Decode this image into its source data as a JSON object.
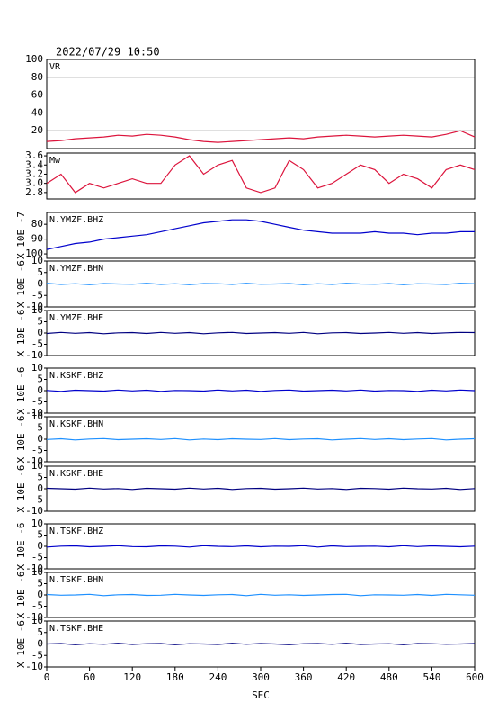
{
  "chart_data": [
    {
      "type": "line",
      "title": "2022/07/29 10:50",
      "label": "VR",
      "color": "#dc143c",
      "grid": true,
      "x": [
        0,
        20,
        40,
        60,
        80,
        100,
        120,
        140,
        160,
        180,
        200,
        220,
        240,
        260,
        280,
        300,
        320,
        340,
        360,
        380,
        400,
        420,
        440,
        460,
        480,
        500,
        520,
        540,
        560,
        580,
        600
      ],
      "values": [
        8,
        9,
        11,
        12,
        13,
        15,
        14,
        16,
        15,
        13,
        10,
        8,
        7,
        8,
        9,
        10,
        11,
        12,
        11,
        13,
        14,
        15,
        14,
        13,
        14,
        15,
        14,
        13,
        16,
        20,
        13
      ],
      "xlim": [
        0,
        600
      ],
      "ylim": [
        0,
        100
      ],
      "yticks": [
        20,
        40,
        60,
        80,
        100
      ]
    },
    {
      "type": "line",
      "label": "Mw",
      "color": "#dc143c",
      "x": [
        0,
        20,
        40,
        60,
        80,
        100,
        120,
        140,
        160,
        180,
        200,
        220,
        240,
        260,
        280,
        300,
        320,
        340,
        360,
        380,
        400,
        420,
        440,
        460,
        480,
        500,
        520,
        540,
        560,
        580,
        600
      ],
      "values": [
        3.0,
        3.2,
        2.8,
        3.0,
        2.9,
        3.0,
        3.1,
        3.0,
        3.0,
        3.4,
        3.6,
        3.2,
        3.4,
        3.5,
        2.9,
        2.8,
        2.9,
        3.5,
        3.3,
        2.9,
        3.0,
        3.2,
        3.4,
        3.3,
        3.0,
        3.2,
        3.1,
        2.9,
        3.3,
        3.4,
        3.3
      ],
      "xlim": [
        0,
        600
      ],
      "ylim": [
        2.66,
        3.66
      ],
      "yticks": [
        2.8,
        {
          "value": 3,
          "label": "3.0"
        },
        3.2,
        3.4,
        3.6
      ]
    },
    {
      "type": "line",
      "label": "N.YMZF.BHZ",
      "y_label": "X 10E -7",
      "color": "#0000cc",
      "x": [
        0,
        20,
        40,
        60,
        80,
        100,
        120,
        140,
        160,
        180,
        200,
        220,
        240,
        260,
        280,
        300,
        320,
        340,
        360,
        380,
        400,
        420,
        440,
        460,
        480,
        500,
        520,
        540,
        560,
        580,
        600
      ],
      "values": [
        97,
        95,
        93,
        92,
        90,
        89,
        88,
        87,
        85,
        83,
        81,
        79,
        78,
        77,
        77,
        78,
        80,
        82,
        84,
        85,
        86,
        86,
        86,
        85,
        86,
        86,
        87,
        86,
        86,
        85,
        85
      ],
      "xlim": [
        0,
        600
      ],
      "ylim": [
        103,
        72
      ],
      "yticks": [
        80,
        90,
        100
      ]
    },
    {
      "type": "line",
      "label": "N.YMZF.BHN",
      "y_label": "X 10E -6",
      "color": "#1e90ff",
      "x": [
        0,
        20,
        40,
        60,
        80,
        100,
        120,
        140,
        160,
        180,
        200,
        220,
        240,
        260,
        280,
        300,
        320,
        340,
        360,
        380,
        400,
        420,
        440,
        460,
        480,
        500,
        520,
        540,
        560,
        580,
        600
      ],
      "values": [
        0.3,
        -0.2,
        0.1,
        -0.3,
        0.2,
        0,
        -0.1,
        0.3,
        -0.2,
        0.1,
        -0.3,
        0.2,
        0.1,
        -0.2,
        0.3,
        -0.1,
        0,
        0.2,
        -0.3,
        0.1,
        -0.2,
        0.3,
        0,
        -0.1,
        0.2,
        -0.3,
        0.1,
        0,
        -0.2,
        0.3,
        0.1
      ],
      "xlim": [
        0,
        600
      ],
      "ylim": [
        -10,
        10
      ],
      "yticks": [
        -10,
        -5,
        0,
        5,
        10
      ]
    },
    {
      "type": "line",
      "label": "N.YMZF.BHE",
      "y_label": "X 10E -6",
      "color": "#000080",
      "x": [
        0,
        20,
        40,
        60,
        80,
        100,
        120,
        140,
        160,
        180,
        200,
        220,
        240,
        260,
        280,
        300,
        320,
        340,
        360,
        380,
        400,
        420,
        440,
        460,
        480,
        500,
        520,
        540,
        560,
        580,
        600
      ],
      "values": [
        -0.2,
        0.3,
        -0.1,
        0.2,
        -0.3,
        0.1,
        0.2,
        -0.2,
        0.3,
        -0.1,
        0.2,
        -0.3,
        0.1,
        0.3,
        -0.2,
        0,
        0.2,
        -0.1,
        0.3,
        -0.3,
        0.1,
        0.2,
        -0.2,
        0,
        0.3,
        -0.1,
        0.2,
        -0.2,
        0.1,
        0.3,
        0.2
      ],
      "xlim": [
        0,
        600
      ],
      "ylim": [
        -10,
        10
      ],
      "yticks": [
        -10,
        -5,
        0,
        5,
        10
      ]
    },
    {
      "type": "line",
      "label": "N.KSKF.BHZ",
      "y_label": "X 10E -6",
      "color": "#0000cc",
      "x": [
        0,
        20,
        40,
        60,
        80,
        100,
        120,
        140,
        160,
        180,
        200,
        220,
        240,
        260,
        280,
        300,
        320,
        340,
        360,
        380,
        400,
        420,
        440,
        460,
        480,
        500,
        520,
        540,
        560,
        580,
        600
      ],
      "values": [
        0.1,
        -0.3,
        0.2,
        0,
        -0.2,
        0.3,
        -0.1,
        0.2,
        -0.3,
        0.1,
        0,
        -0.2,
        0.3,
        -0.1,
        0.2,
        -0.3,
        0.1,
        0.3,
        -0.2,
        0,
        0.2,
        -0.1,
        0.3,
        -0.2,
        0.1,
        0,
        -0.3,
        0.2,
        -0.1,
        0.3,
        0
      ],
      "xlim": [
        0,
        600
      ],
      "ylim": [
        -10,
        10
      ],
      "yticks": [
        -10,
        -5,
        0,
        5,
        10
      ]
    },
    {
      "type": "line",
      "label": "N.KSKF.BHN",
      "y_label": "X 10E -6",
      "color": "#1e90ff",
      "x": [
        0,
        20,
        40,
        60,
        80,
        100,
        120,
        140,
        160,
        180,
        200,
        220,
        240,
        260,
        280,
        300,
        320,
        340,
        360,
        380,
        400,
        420,
        440,
        460,
        480,
        500,
        520,
        540,
        560,
        580,
        600
      ],
      "values": [
        -0.1,
        0.2,
        -0.3,
        0.1,
        0.3,
        -0.2,
        0,
        0.2,
        -0.1,
        0.3,
        -0.3,
        0.1,
        -0.2,
        0.2,
        0,
        -0.1,
        0.3,
        -0.2,
        0.1,
        0.2,
        -0.3,
        0,
        0.3,
        -0.1,
        0.2,
        -0.2,
        0.1,
        0.3,
        -0.3,
        0,
        0.2
      ],
      "xlim": [
        0,
        600
      ],
      "ylim": [
        -10,
        10
      ],
      "yticks": [
        -10,
        -5,
        0,
        5,
        10
      ]
    },
    {
      "type": "line",
      "label": "N.KSKF.BHE",
      "y_label": "X 10E -6",
      "color": "#000080",
      "x": [
        0,
        20,
        40,
        60,
        80,
        100,
        120,
        140,
        160,
        180,
        200,
        220,
        240,
        260,
        280,
        300,
        320,
        340,
        360,
        380,
        400,
        420,
        440,
        460,
        480,
        500,
        520,
        540,
        560,
        580,
        600
      ],
      "values": [
        0.2,
        0,
        -0.2,
        0.3,
        -0.1,
        0.1,
        -0.3,
        0.2,
        0,
        -0.2,
        0.3,
        -0.1,
        0.2,
        -0.3,
        0.1,
        0.2,
        -0.2,
        0,
        0.3,
        -0.1,
        0.1,
        -0.3,
        0.2,
        0.1,
        -0.2,
        0.3,
        0,
        -0.1,
        0.2,
        -0.3,
        0.1
      ],
      "xlim": [
        0,
        600
      ],
      "ylim": [
        -10,
        10
      ],
      "yticks": [
        -10,
        -5,
        0,
        5,
        10
      ]
    },
    {
      "type": "line",
      "label": "N.TSKF.BHZ",
      "y_label": "X 10E -6",
      "color": "#0000cc",
      "x": [
        0,
        20,
        40,
        60,
        80,
        100,
        120,
        140,
        160,
        180,
        200,
        220,
        240,
        260,
        280,
        300,
        320,
        340,
        360,
        380,
        400,
        420,
        440,
        460,
        480,
        500,
        520,
        540,
        560,
        580,
        600
      ],
      "values": [
        -0.3,
        0.1,
        0.2,
        -0.2,
        0,
        0.3,
        -0.1,
        -0.2,
        0.2,
        0.1,
        -0.3,
        0.3,
        0,
        -0.1,
        0.2,
        -0.2,
        0.1,
        0,
        0.3,
        -0.3,
        0.2,
        -0.1,
        0,
        0.1,
        -0.2,
        0.3,
        -0.1,
        0.2,
        0,
        -0.2,
        0.1
      ],
      "xlim": [
        0,
        600
      ],
      "ylim": [
        -10,
        10
      ],
      "yticks": [
        -10,
        -5,
        0,
        5,
        10
      ]
    },
    {
      "type": "line",
      "label": "N.TSKF.BHN",
      "y_label": "X 10E -6",
      "color": "#1e90ff",
      "x": [
        0,
        20,
        40,
        60,
        80,
        100,
        120,
        140,
        160,
        180,
        200,
        220,
        240,
        260,
        280,
        300,
        320,
        340,
        360,
        380,
        400,
        420,
        440,
        460,
        480,
        500,
        520,
        540,
        560,
        580,
        600
      ],
      "values": [
        0.2,
        -0.1,
        0,
        0.3,
        -0.3,
        0.1,
        0.2,
        -0.2,
        -0.1,
        0.3,
        0,
        -0.2,
        0.1,
        0.2,
        -0.3,
        0.3,
        -0.1,
        0.1,
        -0.2,
        0,
        0.2,
        0.3,
        -0.3,
        0.1,
        0,
        -0.1,
        0.2,
        -0.2,
        0.3,
        0.1,
        -0.1
      ],
      "xlim": [
        0,
        600
      ],
      "ylim": [
        -10,
        10
      ],
      "yticks": [
        -10,
        -5,
        0,
        5,
        10
      ]
    },
    {
      "type": "line",
      "label": "N.TSKF.BHE",
      "y_label": "X 10E -6",
      "color": "#000080",
      "x": [
        0,
        20,
        40,
        60,
        80,
        100,
        120,
        140,
        160,
        180,
        200,
        220,
        240,
        260,
        280,
        300,
        320,
        340,
        360,
        380,
        400,
        420,
        440,
        460,
        480,
        500,
        520,
        540,
        560,
        580,
        600
      ],
      "values": [
        0,
        0.2,
        -0.3,
        0.1,
        -0.1,
        0.3,
        -0.2,
        0.1,
        0.2,
        -0.3,
        0.1,
        0,
        -0.2,
        0.3,
        -0.1,
        0.2,
        0,
        -0.3,
        0.1,
        0.2,
        -0.1,
        0.3,
        -0.2,
        0,
        0.1,
        -0.3,
        0.2,
        0.1,
        -0.1,
        0,
        0.2
      ],
      "xlim": [
        0,
        600
      ],
      "ylim": [
        -10,
        10
      ],
      "yticks": [
        -10,
        -5,
        0,
        5,
        10
      ],
      "xticks": [
        0,
        60,
        120,
        180,
        240,
        300,
        360,
        420,
        480,
        540,
        600
      ],
      "xlabel": "SEC"
    }
  ]
}
